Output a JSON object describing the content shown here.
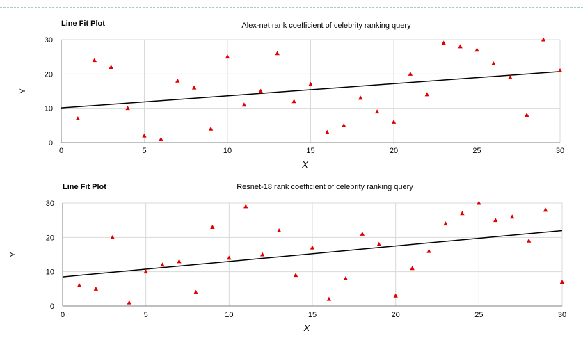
{
  "colors": {
    "marker": "#e00000",
    "fit_line": "#000000",
    "grid": "#d9d9d9",
    "axis": "#808080"
  },
  "chart_data": [
    {
      "type": "scatter",
      "heading": "Line Fit Plot",
      "title": "Alex-net rank coefficient of celebrity ranking query",
      "xlabel": "X",
      "ylabel": "Y",
      "xlim": [
        0,
        30
      ],
      "ylim": [
        0,
        30
      ],
      "xticks": [
        "0",
        "5",
        "10",
        "15",
        "20",
        "25",
        "30"
      ],
      "yticks": [
        "0",
        "10",
        "20",
        "30"
      ],
      "grid": true,
      "x": [
        1,
        2,
        3,
        4,
        5,
        6,
        7,
        8,
        9,
        10,
        11,
        12,
        13,
        14,
        15,
        16,
        17,
        18,
        19,
        20,
        21,
        22,
        23,
        24,
        25,
        26,
        27,
        28,
        29,
        30
      ],
      "y": [
        7,
        24,
        22,
        10,
        2,
        1,
        18,
        16,
        4,
        25,
        11,
        15,
        26,
        12,
        17,
        3,
        5,
        13,
        9,
        6,
        20,
        14,
        29,
        28,
        27,
        23,
        19,
        8,
        30,
        21
      ],
      "fit_line": {
        "x": [
          0,
          30
        ],
        "y": [
          10.1,
          20.7
        ]
      }
    },
    {
      "type": "scatter",
      "heading": "Line Fit Plot",
      "title": "Resnet-18 rank coefficient of celebrity ranking query",
      "xlabel": "X",
      "ylabel": "Y",
      "xlim": [
        0,
        30
      ],
      "ylim": [
        0,
        30
      ],
      "xticks": [
        "0",
        "5",
        "10",
        "15",
        "20",
        "25",
        "30"
      ],
      "yticks": [
        "0",
        "10",
        "20",
        "30"
      ],
      "grid": true,
      "x": [
        1,
        2,
        3,
        4,
        5,
        6,
        7,
        8,
        9,
        10,
        11,
        12,
        13,
        14,
        15,
        16,
        17,
        18,
        19,
        20,
        21,
        22,
        23,
        24,
        25,
        26,
        27,
        28,
        29,
        30
      ],
      "y": [
        6,
        5,
        20,
        1,
        10,
        12,
        13,
        4,
        23,
        14,
        29,
        15,
        22,
        9,
        17,
        2,
        8,
        21,
        18,
        3,
        11,
        16,
        24,
        27,
        30,
        25,
        26,
        19,
        28,
        7
      ],
      "fit_line": {
        "x": [
          0,
          30
        ],
        "y": [
          8.5,
          22.0
        ]
      }
    }
  ]
}
